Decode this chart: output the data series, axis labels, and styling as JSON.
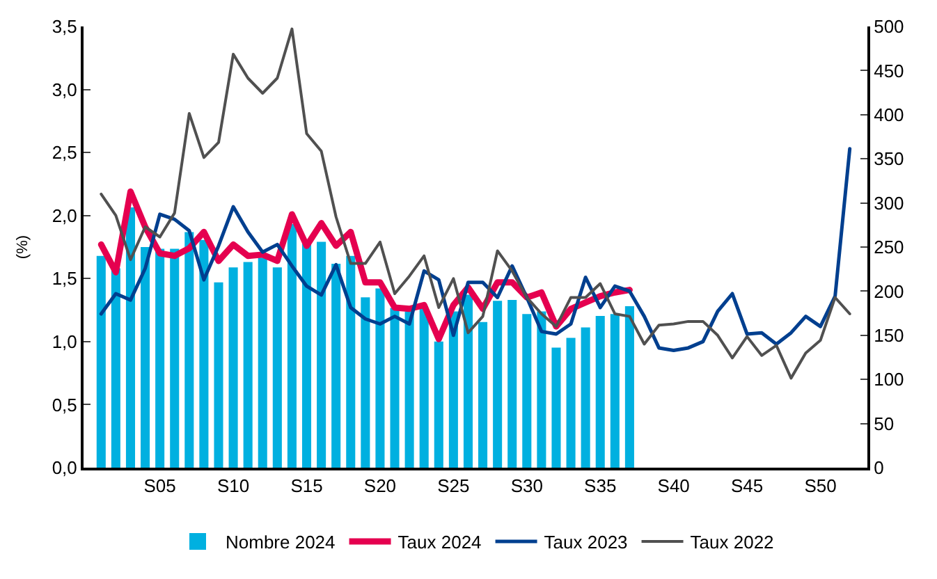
{
  "chart_data": {
    "type": "bar",
    "categories": [
      null,
      null,
      null,
      null,
      "S05",
      null,
      null,
      null,
      null,
      "S10",
      null,
      null,
      null,
      null,
      "S15",
      null,
      null,
      null,
      null,
      "S20",
      null,
      null,
      null,
      null,
      "S25",
      null,
      null,
      null,
      null,
      "S30",
      null,
      null,
      null,
      null,
      "S35",
      null,
      null,
      null,
      null,
      "S40",
      null,
      null,
      null,
      null,
      "S45",
      null,
      null,
      null,
      null,
      "S50",
      null,
      null
    ],
    "ylabel": "(%)",
    "series": [
      {
        "name": "Nombre 2024",
        "axis": "y2",
        "color": "#00b0e0",
        "values": [
          240,
          226,
          295,
          250,
          248,
          248,
          267,
          258,
          210,
          227,
          233,
          238,
          227,
          276,
          254,
          256,
          231,
          240,
          193,
          203,
          181,
          177,
          181,
          143,
          177,
          196,
          165,
          189,
          190,
          174,
          177,
          136,
          147,
          159,
          172,
          174,
          183,
          null,
          null,
          null,
          null,
          null,
          null,
          null,
          null,
          null,
          null,
          null,
          null,
          null,
          null,
          null
        ]
      },
      {
        "name": "Taux 2024",
        "type": "line",
        "color": "#e5004f",
        "values": [
          1.77,
          1.55,
          2.19,
          1.91,
          1.7,
          1.68,
          1.74,
          1.87,
          1.64,
          1.77,
          1.68,
          1.69,
          1.64,
          2.01,
          1.76,
          1.94,
          1.76,
          1.87,
          1.47,
          1.47,
          1.27,
          1.26,
          1.29,
          1.02,
          1.29,
          1.43,
          1.26,
          1.47,
          1.47,
          1.35,
          1.39,
          1.12,
          1.26,
          1.31,
          1.36,
          1.39,
          1.41,
          null,
          null,
          null,
          null,
          null,
          null,
          null,
          null,
          null,
          null,
          null,
          null,
          null,
          null,
          null
        ]
      },
      {
        "name": "Taux 2023",
        "type": "line",
        "color": "#003f8f",
        "values": [
          1.22,
          1.38,
          1.33,
          1.58,
          2.01,
          1.97,
          1.88,
          1.49,
          1.76,
          2.07,
          1.87,
          1.71,
          1.77,
          1.6,
          1.44,
          1.37,
          1.61,
          1.27,
          1.18,
          1.14,
          1.2,
          1.14,
          1.56,
          1.49,
          1.05,
          1.47,
          1.47,
          1.35,
          1.6,
          1.35,
          1.08,
          1.06,
          1.14,
          1.51,
          1.27,
          1.44,
          1.4,
          1.2,
          0.95,
          0.93,
          0.95,
          1.0,
          1.24,
          1.38,
          1.06,
          1.07,
          0.98,
          1.07,
          1.2,
          1.12,
          1.36,
          2.53
        ]
      },
      {
        "name": "Taux 2022",
        "type": "line",
        "color": "#505050",
        "values": [
          2.17,
          2.0,
          1.65,
          1.91,
          1.83,
          2.02,
          2.81,
          2.46,
          2.58,
          3.28,
          3.09,
          2.97,
          3.09,
          3.48,
          2.65,
          2.51,
          1.99,
          1.62,
          1.62,
          1.79,
          1.38,
          1.52,
          1.68,
          1.27,
          1.5,
          1.07,
          1.2,
          1.72,
          1.56,
          1.35,
          1.22,
          1.12,
          1.35,
          1.35,
          1.46,
          1.22,
          1.2,
          0.98,
          1.13,
          1.14,
          1.16,
          1.16,
          1.05,
          0.87,
          1.04,
          0.89,
          0.97,
          0.71,
          0.91,
          1.01,
          1.35,
          1.22
        ]
      }
    ],
    "ylim": [
      0,
      3.5
    ],
    "yticks": [
      {
        "value": 0,
        "label": "0,0"
      },
      {
        "value": 0.5,
        "label": "0,5"
      },
      {
        "value": 1,
        "label": "1,0"
      },
      {
        "value": 1.5,
        "label": "1,5"
      },
      {
        "value": 2,
        "label": "2,0"
      },
      {
        "value": 2.5,
        "label": "2,5"
      },
      {
        "value": 3,
        "label": "3,0"
      },
      {
        "value": 3.5,
        "label": "3,5"
      }
    ],
    "y2lim": [
      0,
      500
    ],
    "y2ticks": [
      0,
      50,
      100,
      150,
      200,
      250,
      300,
      350,
      400,
      450,
      500
    ],
    "legend": "bottom"
  }
}
